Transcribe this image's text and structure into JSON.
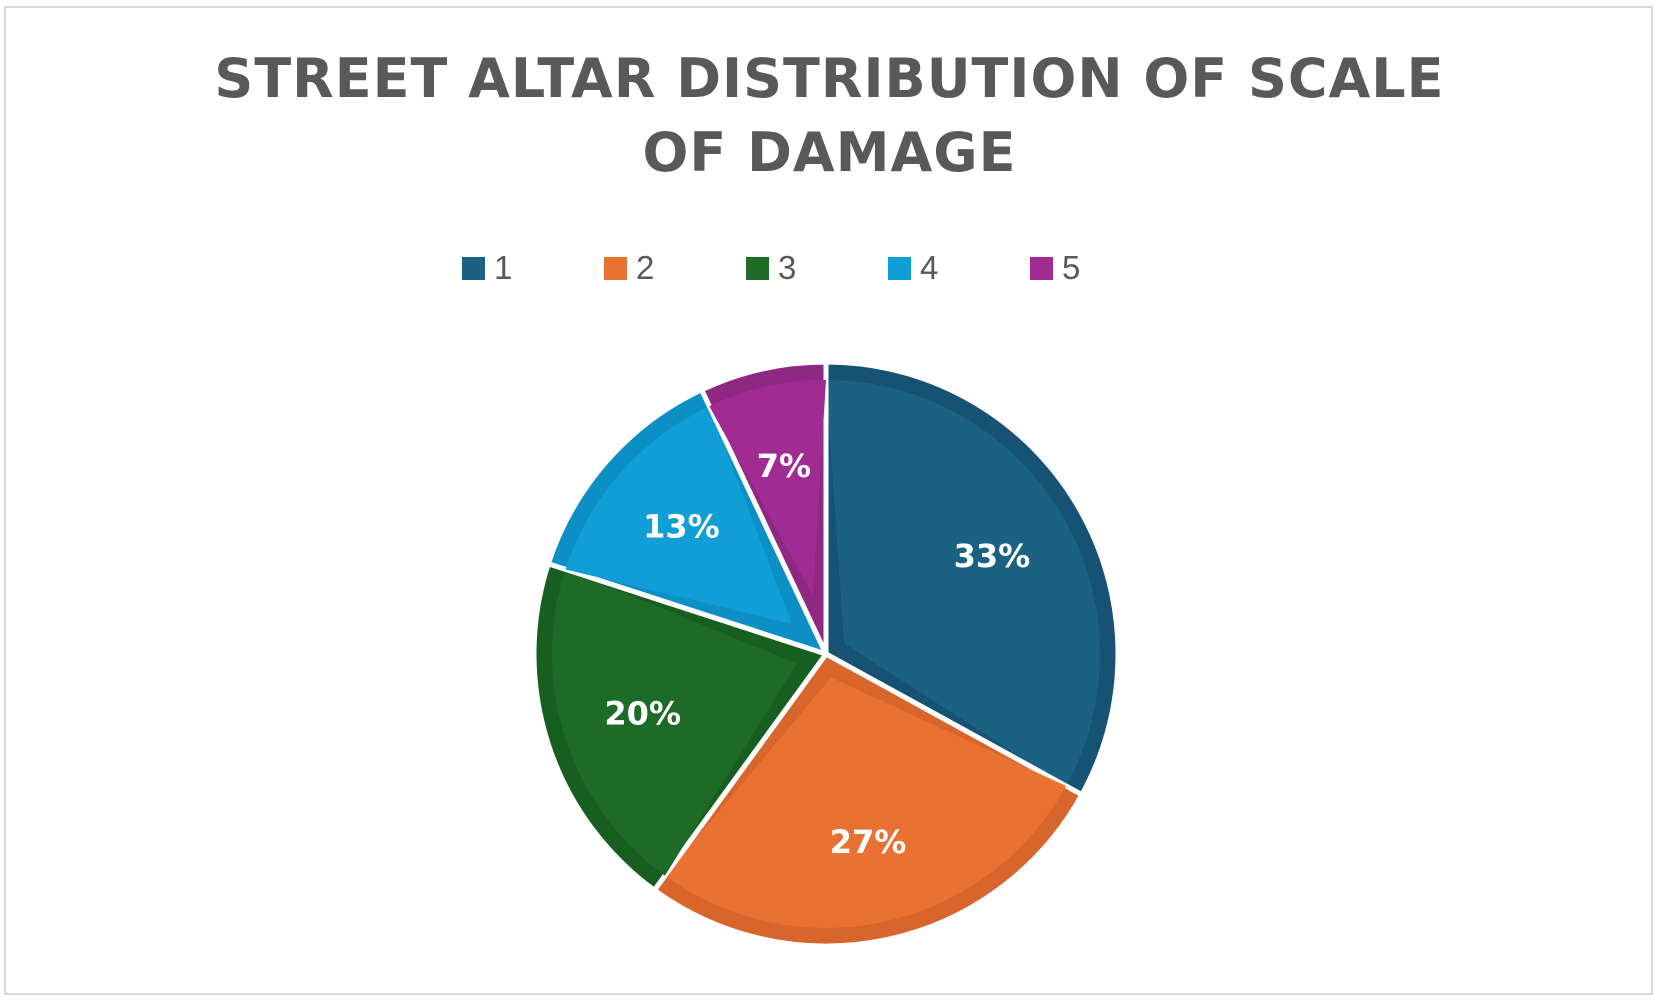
{
  "chart_data": {
    "type": "pie",
    "title": "STREET ALTAR DISTRIBUTION OF SCALE OF DAMAGE",
    "categories": [
      "1",
      "2",
      "3",
      "4",
      "5"
    ],
    "values": [
      33,
      27,
      20,
      13,
      7
    ],
    "data_labels": [
      "33%",
      "27%",
      "20%",
      "13%",
      "7%"
    ],
    "colors": [
      "#1b6181",
      "#e97132",
      "#1e6b28",
      "#0f9ed5",
      "#a02b93"
    ],
    "border_colors": [
      "#155274",
      "#d8652c",
      "#175f21",
      "#0b8fc4",
      "#8e2883"
    ],
    "legend_position": "top",
    "start_angle_deg": 0,
    "direction": "clockwise"
  }
}
